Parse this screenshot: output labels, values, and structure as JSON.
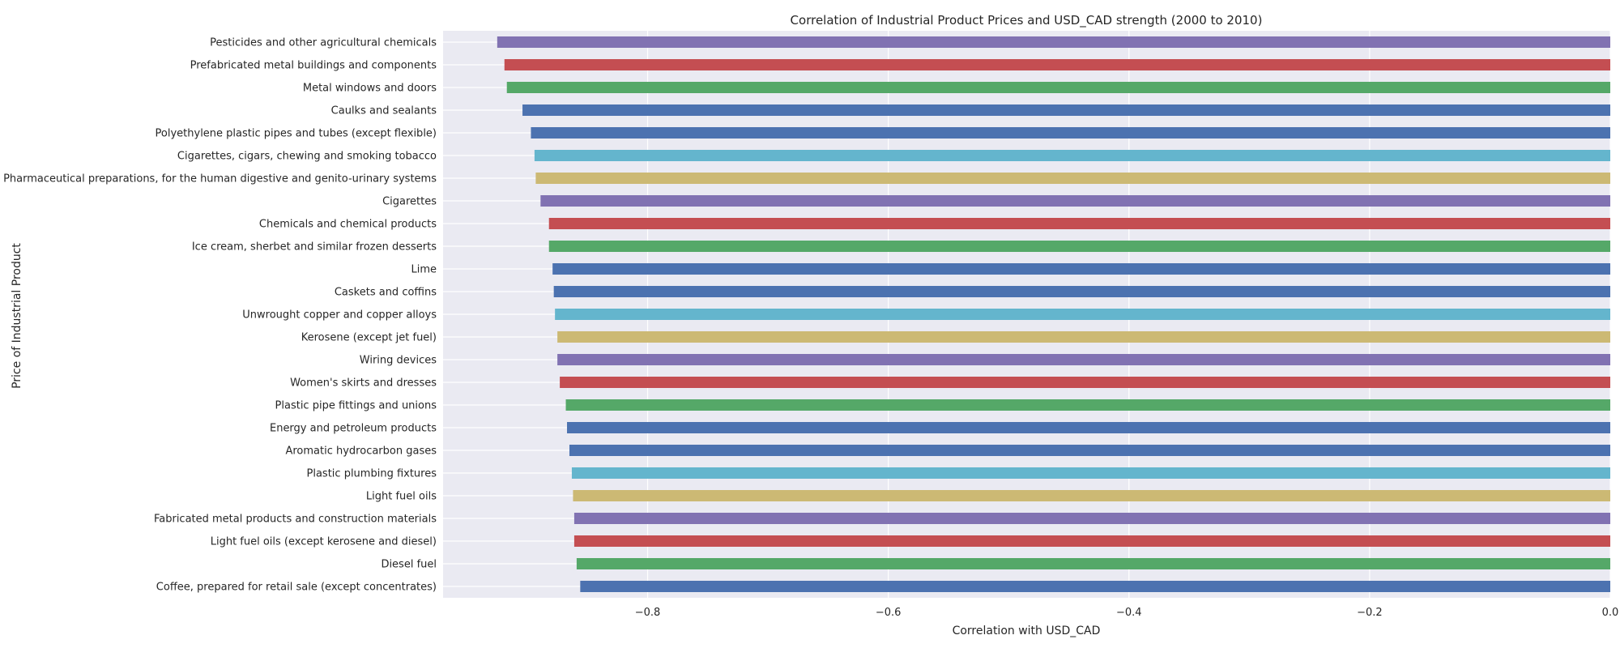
{
  "chart_data": {
    "type": "bar",
    "orientation": "horizontal",
    "title": "Correlation of Industrial Product Prices and USD_CAD strength (2000 to 2010)",
    "xlabel": "Correlation with USD_CAD",
    "ylabel": "Price of Industrial Product",
    "xlim": [
      -0.97,
      0.0
    ],
    "xticks": [
      -0.8,
      -0.6,
      -0.4,
      -0.2,
      0.0
    ],
    "xtick_labels": [
      "−0.8",
      "−0.6",
      "−0.4",
      "−0.2",
      "0.0"
    ],
    "grid": true,
    "legend": "none",
    "palette": [
      "#4c72b0",
      "#55a868",
      "#c44e52",
      "#8172b2",
      "#ccb974",
      "#64b5cd"
    ],
    "categories": [
      "Pesticides and other agricultural chemicals",
      "Prefabricated metal buildings and components",
      "Metal windows and doors",
      "Caulks and sealants",
      "Polyethylene plastic pipes and tubes (except flexible)",
      "Cigarettes, cigars, chewing and smoking tobacco",
      "Pharmaceutical preparations, for the human digestive and genito-urinary systems",
      "Cigarettes",
      "Chemicals and chemical products",
      "Ice cream, sherbet and similar frozen desserts",
      "Lime",
      "Caskets and coffins",
      "Unwrought copper and copper alloys",
      "Kerosene (except jet fuel)",
      "Wiring devices",
      "Women's skirts and dresses",
      "Plastic pipe fittings and unions",
      "Energy and petroleum products",
      "Aromatic hydrocarbon gases",
      "Plastic plumbing fixtures",
      "Light fuel oils",
      "Fabricated metal products and construction materials",
      "Light fuel oils (except kerosene and diesel)",
      "Diesel fuel",
      "Coffee, prepared for retail sale (except concentrates)"
    ],
    "values": [
      -0.925,
      -0.919,
      -0.917,
      -0.904,
      -0.897,
      -0.894,
      -0.893,
      -0.889,
      -0.882,
      -0.882,
      -0.879,
      -0.878,
      -0.877,
      -0.875,
      -0.875,
      -0.873,
      -0.868,
      -0.867,
      -0.865,
      -0.863,
      -0.862,
      -0.861,
      -0.861,
      -0.859,
      -0.856
    ],
    "bar_colors": [
      "#8172b2",
      "#c44e52",
      "#55a868",
      "#4c72b0",
      "#4c72b0",
      "#64b5cd",
      "#ccb974",
      "#8172b2",
      "#c44e52",
      "#55a868",
      "#4c72b0",
      "#4c72b0",
      "#64b5cd",
      "#ccb974",
      "#8172b2",
      "#c44e52",
      "#55a868",
      "#4c72b0",
      "#4c72b0",
      "#64b5cd",
      "#ccb974",
      "#8172b2",
      "#c44e52",
      "#55a868",
      "#4c72b0"
    ]
  }
}
